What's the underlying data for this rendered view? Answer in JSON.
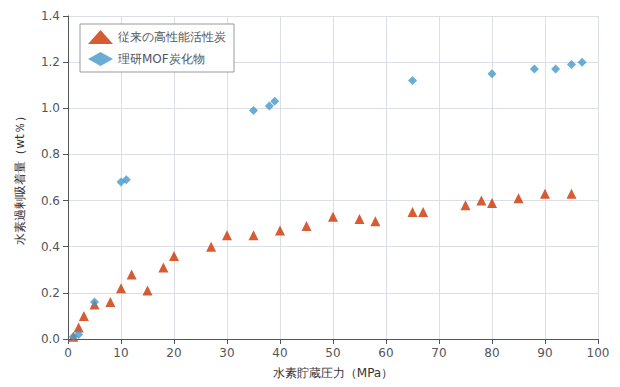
{
  "chart_data": {
    "type": "scatter",
    "xlabel": "水素貯蔵圧力（MPa）",
    "ylabel": "水素過剰吸着量（wt％）",
    "xlim": [
      0,
      100
    ],
    "ylim": [
      0,
      1.4
    ],
    "xticks": [
      0,
      10,
      20,
      30,
      40,
      50,
      60,
      70,
      80,
      90,
      100
    ],
    "yticks": [
      {
        "value": 0.0,
        "label": "0.0"
      },
      {
        "value": 0.2,
        "label": "0.2"
      },
      {
        "value": 0.4,
        "label": "0.4"
      },
      {
        "value": 0.6,
        "label": "0.6"
      },
      {
        "value": 0.8,
        "label": "0.8"
      },
      {
        "value": 1.0,
        "label": "1.0"
      },
      {
        "value": 1.2,
        "label": "1.2"
      },
      {
        "value": 1.4,
        "label": "1.4"
      }
    ],
    "grid": true,
    "legend": "upper left",
    "series": [
      {
        "name": "従来の高性能活性炭",
        "color": "#CC3300",
        "marker": "triangle",
        "x": [
          1,
          2,
          3,
          5,
          8,
          10,
          12,
          15,
          18,
          20,
          27,
          30,
          35,
          40,
          45,
          50,
          55,
          58,
          65,
          67,
          75,
          78,
          80,
          85,
          90,
          95
        ],
        "values": [
          0.01,
          0.05,
          0.1,
          0.15,
          0.16,
          0.22,
          0.28,
          0.21,
          0.31,
          0.36,
          0.4,
          0.45,
          0.45,
          0.47,
          0.49,
          0.53,
          0.52,
          0.51,
          0.55,
          0.55,
          0.58,
          0.6,
          0.59,
          0.61,
          0.63,
          0.63
        ]
      },
      {
        "name": "理研MOF炭化物",
        "color": "#4499CC",
        "marker": "diamond",
        "x": [
          1,
          2,
          5,
          10,
          11,
          35,
          38,
          39,
          65,
          80,
          88,
          92,
          95,
          97
        ],
        "values": [
          0.01,
          0.02,
          0.16,
          0.68,
          0.69,
          0.99,
          1.01,
          1.03,
          1.12,
          1.15,
          1.17,
          1.17,
          1.19,
          1.2
        ]
      }
    ]
  }
}
